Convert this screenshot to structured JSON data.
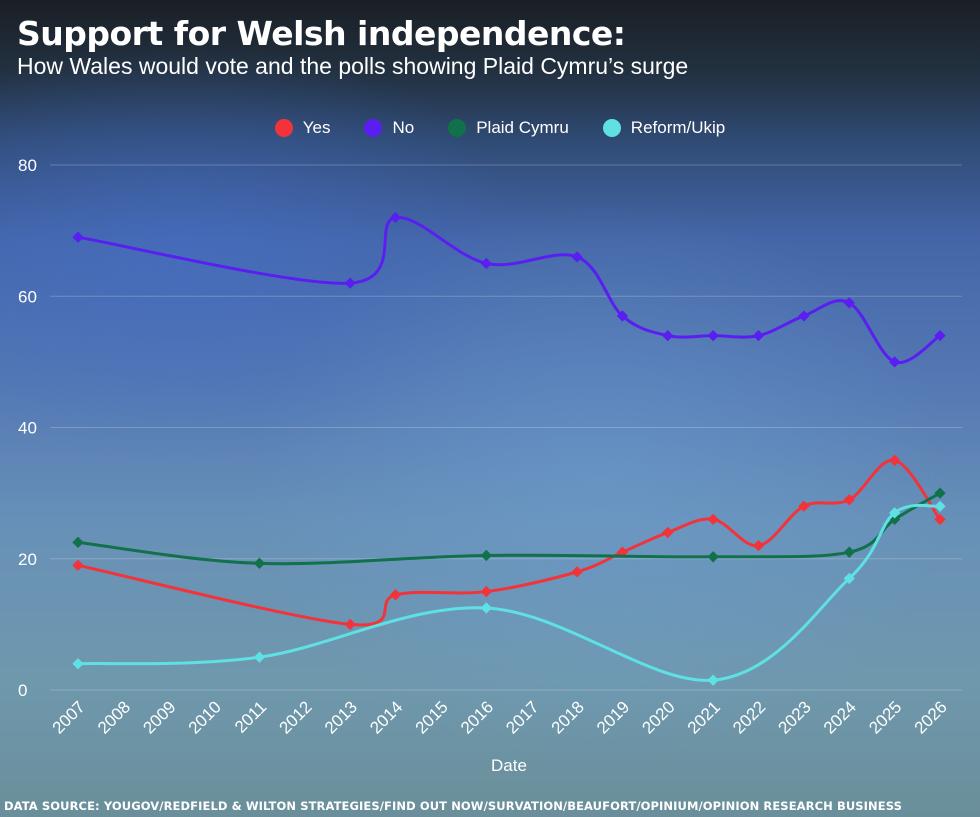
{
  "chart_data": {
    "type": "line",
    "title": "Support for Welsh independence:",
    "subtitle": "How Wales would vote and the polls showing Plaid Cymru’s surge",
    "xlabel": "Date",
    "ylabel": "",
    "ylim": [
      0,
      80
    ],
    "yticks": [
      0,
      20,
      40,
      60,
      80
    ],
    "xticks": [
      2007,
      2008,
      2009,
      2010,
      2011,
      2012,
      2013,
      2014,
      2015,
      2016,
      2017,
      2018,
      2019,
      2020,
      2021,
      2022,
      2023,
      2024,
      2025,
      2026
    ],
    "grid": true,
    "legend_position": "top-center",
    "series": [
      {
        "name": "Yes",
        "color": "#f2333a",
        "x": [
          2007,
          2013,
          2014,
          2016,
          2018,
          2019,
          2020,
          2021,
          2022,
          2023,
          2024,
          2025,
          2026
        ],
        "values": [
          19,
          10,
          14.5,
          15,
          18,
          21,
          24,
          26,
          22,
          28,
          29,
          35,
          26
        ]
      },
      {
        "name": "No",
        "color": "#5a1ff0",
        "x": [
          2007,
          2013,
          2014,
          2016,
          2018,
          2019,
          2020,
          2021,
          2022,
          2023,
          2024,
          2025,
          2026
        ],
        "values": [
          69,
          62,
          72,
          65,
          66,
          57,
          54,
          54,
          54,
          57,
          59,
          50,
          54
        ]
      },
      {
        "name": "Plaid Cymru",
        "color": "#11714a",
        "x": [
          2007,
          2011,
          2016,
          2021,
          2024,
          2025,
          2026
        ],
        "values": [
          22.5,
          19.3,
          20.5,
          20.3,
          21,
          26,
          30
        ]
      },
      {
        "name": "Reform/Ukip",
        "color": "#5fe0e3",
        "x": [
          2007,
          2011,
          2016,
          2021,
          2024,
          2025,
          2026
        ],
        "values": [
          4,
          5,
          12.5,
          1.5,
          17,
          27,
          28
        ]
      }
    ]
  },
  "source": "DATA SOURCE: YOUGOV/REDFIELD & WILTON STRATEGIES/FIND OUT NOW/SURVATION/BEAUFORT/OPINIUM/OPINION RESEARCH BUSINESS"
}
